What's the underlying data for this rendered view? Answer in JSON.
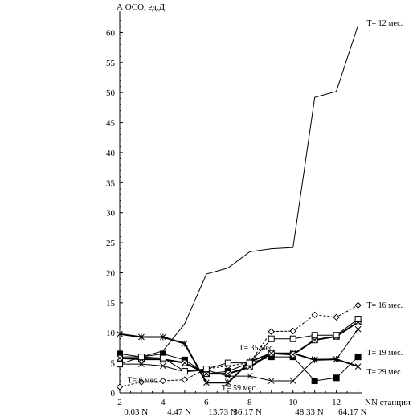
{
  "chart_data": {
    "type": "line",
    "ylabel": "А ОСО, ед.Д.",
    "xlabel": "NN станции",
    "xlim": [
      2,
      13.2
    ],
    "ylim": [
      0,
      63
    ],
    "x_ticks": [
      "2",
      "4",
      "6",
      "8",
      "10",
      "12"
    ],
    "y_ticks": [
      "0",
      "5",
      "10",
      "15",
      "20",
      "25",
      "30",
      "35",
      "40",
      "45",
      "50",
      "55",
      "60"
    ],
    "station_labels": [
      {
        "x": 2.75,
        "text": "0.03 N"
      },
      {
        "x": 4.75,
        "text": "4.47 N"
      },
      {
        "x": 6.75,
        "text": "13.73 N"
      },
      {
        "x": 7.9,
        "text": "36.17 N"
      },
      {
        "x": 10.75,
        "text": "48.33 N"
      },
      {
        "x": 12.75,
        "text": "64.17 N"
      }
    ],
    "x": [
      2,
      3,
      4,
      5,
      6,
      7,
      8,
      9,
      10,
      11,
      12,
      13
    ],
    "series": [
      {
        "name": "T= 12 мес.",
        "marker": "none",
        "dash": "solid",
        "width": 1,
        "values": [
          6.0,
          6.0,
          7.0,
          11.5,
          19.8,
          20.8,
          23.5,
          24.0,
          24.2,
          49.2,
          50.2,
          61.2
        ],
        "label_x": 13.4,
        "label_y": 61.5
      },
      {
        "name": "T= 16 мес.",
        "marker": "diamond",
        "dash": "dashed",
        "width": 1,
        "values": [
          1.0,
          1.8,
          2.0,
          2.2,
          4.0,
          4.5,
          5.0,
          10.2,
          10.3,
          13.0,
          12.6,
          14.6
        ],
        "label_x": 13.4,
        "label_y": 14.6
      },
      {
        "name": "T= 19 мес.",
        "marker": "filled-square",
        "dash": "solid",
        "width": 1,
        "values": [
          6.5,
          6.0,
          6.5,
          5.5,
          3.2,
          3.6,
          5.0,
          6.0,
          6.0,
          2.0,
          2.5,
          6.0
        ],
        "label_x": 13.4,
        "label_y": 6.7
      },
      {
        "name": "T= 29 мес.",
        "marker": "star",
        "dash": "solid",
        "width": 2,
        "values": [
          9.8,
          9.3,
          9.3,
          8.2,
          1.7,
          1.7,
          5.2,
          6.6,
          6.6,
          5.5,
          5.6,
          4.4
        ],
        "label_x": 13.4,
        "label_y": 3.5
      },
      {
        "name": "T= 35 мес.",
        "marker": "crossed-square",
        "dash": "solid",
        "width": 2,
        "values": [
          5.8,
          5.6,
          5.6,
          5.0,
          3.2,
          3.2,
          4.3,
          6.6,
          6.4,
          8.8,
          9.4,
          11.8
        ],
        "label_x": 7.5,
        "label_y": 7.5
      },
      {
        "name": "T= 59 мес.",
        "marker": "x",
        "dash": "solid",
        "width": 1,
        "values": [
          4.8,
          4.8,
          4.5,
          3.5,
          3.8,
          2.8,
          2.8,
          2.0,
          2.0,
          5.6,
          5.6,
          10.6
        ],
        "label_x": 6.7,
        "label_y": 0.8
      },
      {
        "name": "T= 6 мес.",
        "marker": "open-square",
        "dash": "solid",
        "width": 1,
        "values": [
          4.8,
          6.0,
          5.8,
          3.6,
          4.0,
          5.0,
          5.0,
          9.0,
          9.0,
          9.6,
          9.6,
          12.3
        ],
        "label_x": 2.35,
        "label_y": 2.1
      }
    ]
  }
}
